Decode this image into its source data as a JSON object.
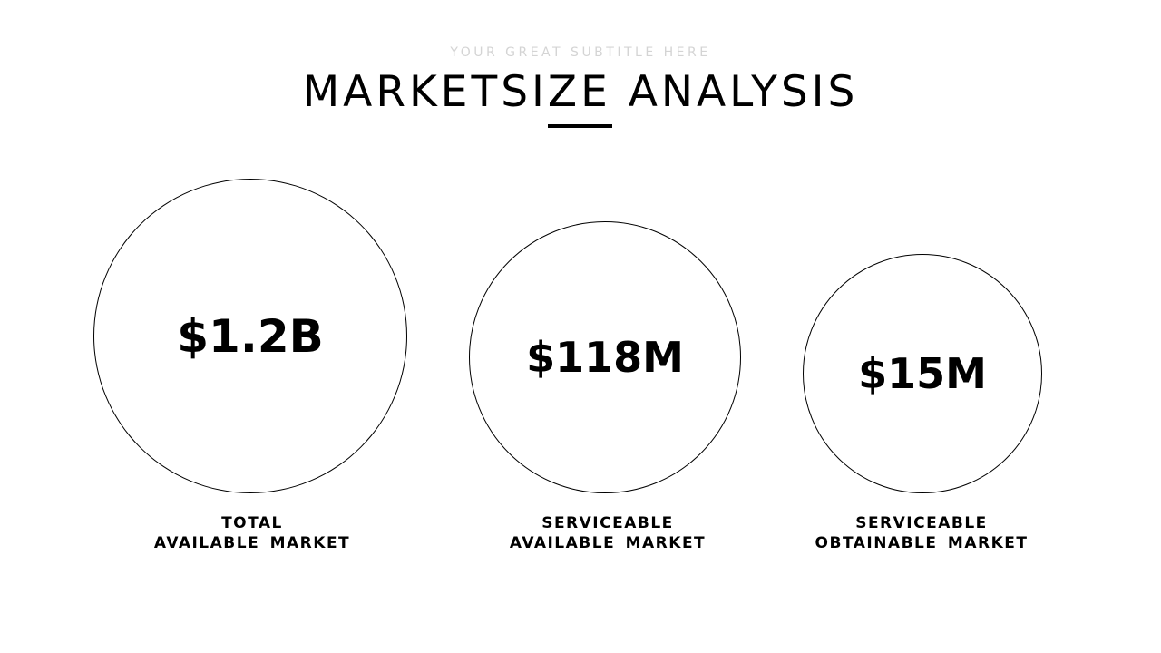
{
  "header": {
    "subtitle": "YOUR GREAT SUBTITLE HERE",
    "title": "MARKETSIZE ANALYSIS"
  },
  "markets": [
    {
      "value": "$1.2B",
      "line1": "TOTAL",
      "line2": "AVAILABLE MARKET"
    },
    {
      "value": "$118M",
      "line1": "SERVICEABLE",
      "line2": "AVAILABLE MARKET"
    },
    {
      "value": "$15M",
      "line1": "SERVICEABLE",
      "line2": "OBTAINABLE MARKET"
    }
  ]
}
